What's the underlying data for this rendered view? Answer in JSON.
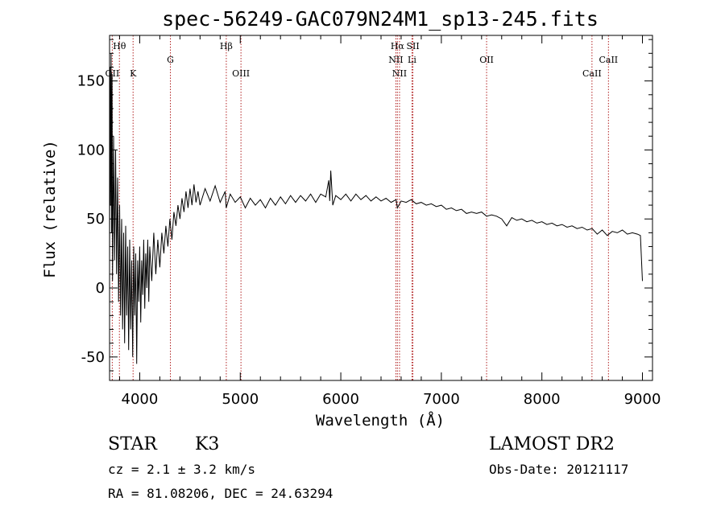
{
  "chart_data": {
    "type": "line",
    "title": "spec-56249-GAC079N24M1_sp13-245.fits",
    "xlabel": "Wavelength (Å)",
    "ylabel": "Flux (relative)",
    "xlim": [
      3700,
      9100
    ],
    "ylim": [
      -67,
      183
    ],
    "xticks": [
      4000,
      5000,
      6000,
      7000,
      8000,
      9000
    ],
    "yticks": [
      -50,
      0,
      50,
      100,
      150
    ],
    "grid": false,
    "series": [
      {
        "values": [
          [
            3700,
            20
          ],
          [
            3705,
            160
          ],
          [
            3710,
            60
          ],
          [
            3715,
            170
          ],
          [
            3720,
            40
          ],
          [
            3725,
            155
          ],
          [
            3730,
            5
          ],
          [
            3740,
            110
          ],
          [
            3750,
            20
          ],
          [
            3760,
            100
          ],
          [
            3770,
            10
          ],
          [
            3780,
            80
          ],
          [
            3790,
            -10
          ],
          [
            3800,
            60
          ],
          [
            3810,
            -20
          ],
          [
            3820,
            50
          ],
          [
            3830,
            -30
          ],
          [
            3840,
            40
          ],
          [
            3850,
            -40
          ],
          [
            3860,
            45
          ],
          [
            3870,
            -20
          ],
          [
            3880,
            30
          ],
          [
            3890,
            -45
          ],
          [
            3900,
            35
          ],
          [
            3910,
            -30
          ],
          [
            3920,
            20
          ],
          [
            3930,
            -50
          ],
          [
            3940,
            30
          ],
          [
            3950,
            -20
          ],
          [
            3960,
            25
          ],
          [
            3970,
            -55
          ],
          [
            3980,
            20
          ],
          [
            3990,
            -10
          ],
          [
            4000,
            30
          ],
          [
            4010,
            -25
          ],
          [
            4020,
            20
          ],
          [
            4030,
            -5
          ],
          [
            4040,
            35
          ],
          [
            4050,
            -15
          ],
          [
            4060,
            25
          ],
          [
            4070,
            0
          ],
          [
            4080,
            35
          ],
          [
            4090,
            -10
          ],
          [
            4100,
            30
          ],
          [
            4120,
            5
          ],
          [
            4140,
            40
          ],
          [
            4160,
            10
          ],
          [
            4180,
            35
          ],
          [
            4200,
            15
          ],
          [
            4220,
            40
          ],
          [
            4240,
            25
          ],
          [
            4260,
            45
          ],
          [
            4280,
            30
          ],
          [
            4300,
            50
          ],
          [
            4320,
            35
          ],
          [
            4340,
            55
          ],
          [
            4360,
            45
          ],
          [
            4380,
            60
          ],
          [
            4400,
            50
          ],
          [
            4420,
            65
          ],
          [
            4440,
            55
          ],
          [
            4460,
            70
          ],
          [
            4480,
            58
          ],
          [
            4500,
            72
          ],
          [
            4520,
            60
          ],
          [
            4540,
            75
          ],
          [
            4560,
            62
          ],
          [
            4580,
            70
          ],
          [
            4600,
            60
          ],
          [
            4650,
            72
          ],
          [
            4700,
            63
          ],
          [
            4750,
            74
          ],
          [
            4800,
            62
          ],
          [
            4850,
            70
          ],
          [
            4860,
            58
          ],
          [
            4900,
            68
          ],
          [
            4950,
            62
          ],
          [
            5000,
            66
          ],
          [
            5050,
            58
          ],
          [
            5100,
            65
          ],
          [
            5150,
            60
          ],
          [
            5200,
            64
          ],
          [
            5250,
            58
          ],
          [
            5300,
            65
          ],
          [
            5350,
            60
          ],
          [
            5400,
            66
          ],
          [
            5450,
            61
          ],
          [
            5500,
            67
          ],
          [
            5550,
            62
          ],
          [
            5600,
            67
          ],
          [
            5650,
            63
          ],
          [
            5700,
            68
          ],
          [
            5750,
            62
          ],
          [
            5800,
            68
          ],
          [
            5850,
            66
          ],
          [
            5880,
            78
          ],
          [
            5890,
            63
          ],
          [
            5900,
            85
          ],
          [
            5920,
            60
          ],
          [
            5950,
            67
          ],
          [
            6000,
            64
          ],
          [
            6050,
            68
          ],
          [
            6100,
            63
          ],
          [
            6150,
            68
          ],
          [
            6200,
            64
          ],
          [
            6250,
            67
          ],
          [
            6300,
            63
          ],
          [
            6350,
            66
          ],
          [
            6400,
            63
          ],
          [
            6450,
            65
          ],
          [
            6500,
            62
          ],
          [
            6550,
            64
          ],
          [
            6563,
            58
          ],
          [
            6600,
            63
          ],
          [
            6650,
            62
          ],
          [
            6700,
            64
          ],
          [
            6750,
            61
          ],
          [
            6800,
            62
          ],
          [
            6850,
            60
          ],
          [
            6900,
            61
          ],
          [
            6950,
            59
          ],
          [
            7000,
            60
          ],
          [
            7050,
            57
          ],
          [
            7100,
            58
          ],
          [
            7150,
            56
          ],
          [
            7200,
            57
          ],
          [
            7250,
            54
          ],
          [
            7300,
            55
          ],
          [
            7350,
            54
          ],
          [
            7400,
            55
          ],
          [
            7450,
            52
          ],
          [
            7500,
            53
          ],
          [
            7550,
            52
          ],
          [
            7600,
            50
          ],
          [
            7650,
            45
          ],
          [
            7700,
            51
          ],
          [
            7750,
            49
          ],
          [
            7800,
            50
          ],
          [
            7850,
            48
          ],
          [
            7900,
            49
          ],
          [
            7950,
            47
          ],
          [
            8000,
            48
          ],
          [
            8050,
            46
          ],
          [
            8100,
            47
          ],
          [
            8150,
            45
          ],
          [
            8200,
            46
          ],
          [
            8250,
            44
          ],
          [
            8300,
            45
          ],
          [
            8350,
            43
          ],
          [
            8400,
            44
          ],
          [
            8450,
            42
          ],
          [
            8500,
            43
          ],
          [
            8550,
            39
          ],
          [
            8600,
            42
          ],
          [
            8650,
            38
          ],
          [
            8700,
            41
          ],
          [
            8750,
            40
          ],
          [
            8800,
            42
          ],
          [
            8850,
            39
          ],
          [
            8900,
            40
          ],
          [
            8950,
            39
          ],
          [
            8980,
            38
          ],
          [
            9000,
            5
          ]
        ]
      }
    ],
    "annotations": [
      {
        "label": "Hθ",
        "x": 3798,
        "row": "top"
      },
      {
        "label": "OII",
        "x": 3727,
        "row": "bottom"
      },
      {
        "label": "K",
        "x": 3934,
        "row": "bottom"
      },
      {
        "label": "G",
        "x": 4305,
        "row": "middle"
      },
      {
        "label": "Hβ",
        "x": 4861,
        "row": "top"
      },
      {
        "label": "OIII",
        "x": 5007,
        "row": "bottom"
      },
      {
        "label": "Hα",
        "x": 6563,
        "row": "top"
      },
      {
        "label": "NII",
        "x": 6548,
        "row": "middle"
      },
      {
        "label": "NII",
        "x": 6584,
        "row": "bottom"
      },
      {
        "label": "SII",
        "x": 6717,
        "row": "top"
      },
      {
        "label": "Li",
        "x": 6708,
        "row": "middle"
      },
      {
        "label": "OII",
        "x": 7450,
        "row": "middle"
      },
      {
        "label": "CaII",
        "x": 8498,
        "row": "bottom"
      },
      {
        "label": "CaII",
        "x": 8662,
        "row": "middle"
      }
    ]
  },
  "info": {
    "class": "STAR",
    "subclass": "K3",
    "cz": "cz = 2.1 ± 3.2 km/s",
    "coords": "RA =  81.08206, DEC =  24.63294",
    "survey": "LAMOST DR2",
    "obs_date": "Obs-Date: 20121117"
  },
  "colors": {
    "line": "#000000",
    "marker": "#b22222"
  }
}
